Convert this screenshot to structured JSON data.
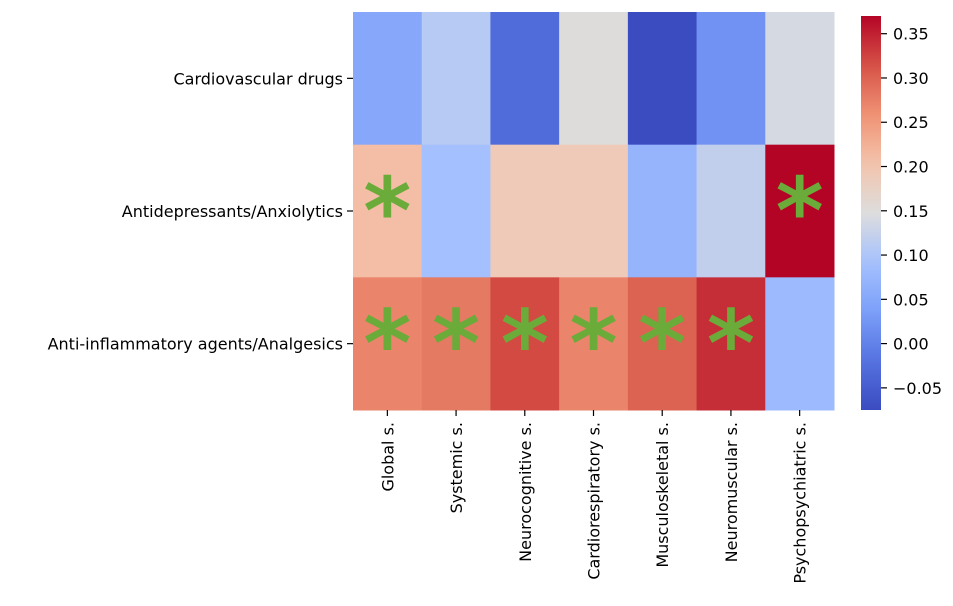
{
  "chart_data": {
    "type": "heatmap",
    "rows": [
      "Cardiovascular drugs",
      "Antidepressants/Anxiolytics",
      "Anti-inflammatory agents/Analgesics"
    ],
    "columns": [
      "Global s.",
      "Systemic s.",
      "Neurocognitive s.",
      "Cardiorespiratory s.",
      "Musculoskeletal s.",
      "Neuromuscular s.",
      "Psychopsychiatric s."
    ],
    "values": [
      [
        0.05,
        0.11,
        -0.03,
        0.15,
        -0.075,
        0.02,
        0.14
      ],
      [
        0.21,
        0.09,
        0.19,
        0.19,
        0.07,
        0.12,
        0.37
      ],
      [
        0.27,
        0.28,
        0.32,
        0.27,
        0.3,
        0.34,
        0.08
      ]
    ],
    "significant": [
      [
        false,
        false,
        false,
        false,
        false,
        false,
        false
      ],
      [
        true,
        false,
        false,
        false,
        false,
        false,
        true
      ],
      [
        true,
        true,
        true,
        true,
        true,
        true,
        false
      ]
    ],
    "marker_symbol": "*",
    "marker_color": "#6aab3a",
    "colormap": "coolwarm",
    "vmin": -0.075,
    "vmax": 0.37,
    "colorbar_ticks": [
      -0.05,
      0.0,
      0.05,
      0.1,
      0.15,
      0.2,
      0.25,
      0.3,
      0.35
    ],
    "colorbar_tick_labels": [
      "−0.05",
      "0.00",
      "0.05",
      "0.10",
      "0.15",
      "0.20",
      "0.25",
      "0.30",
      "0.35"
    ]
  }
}
